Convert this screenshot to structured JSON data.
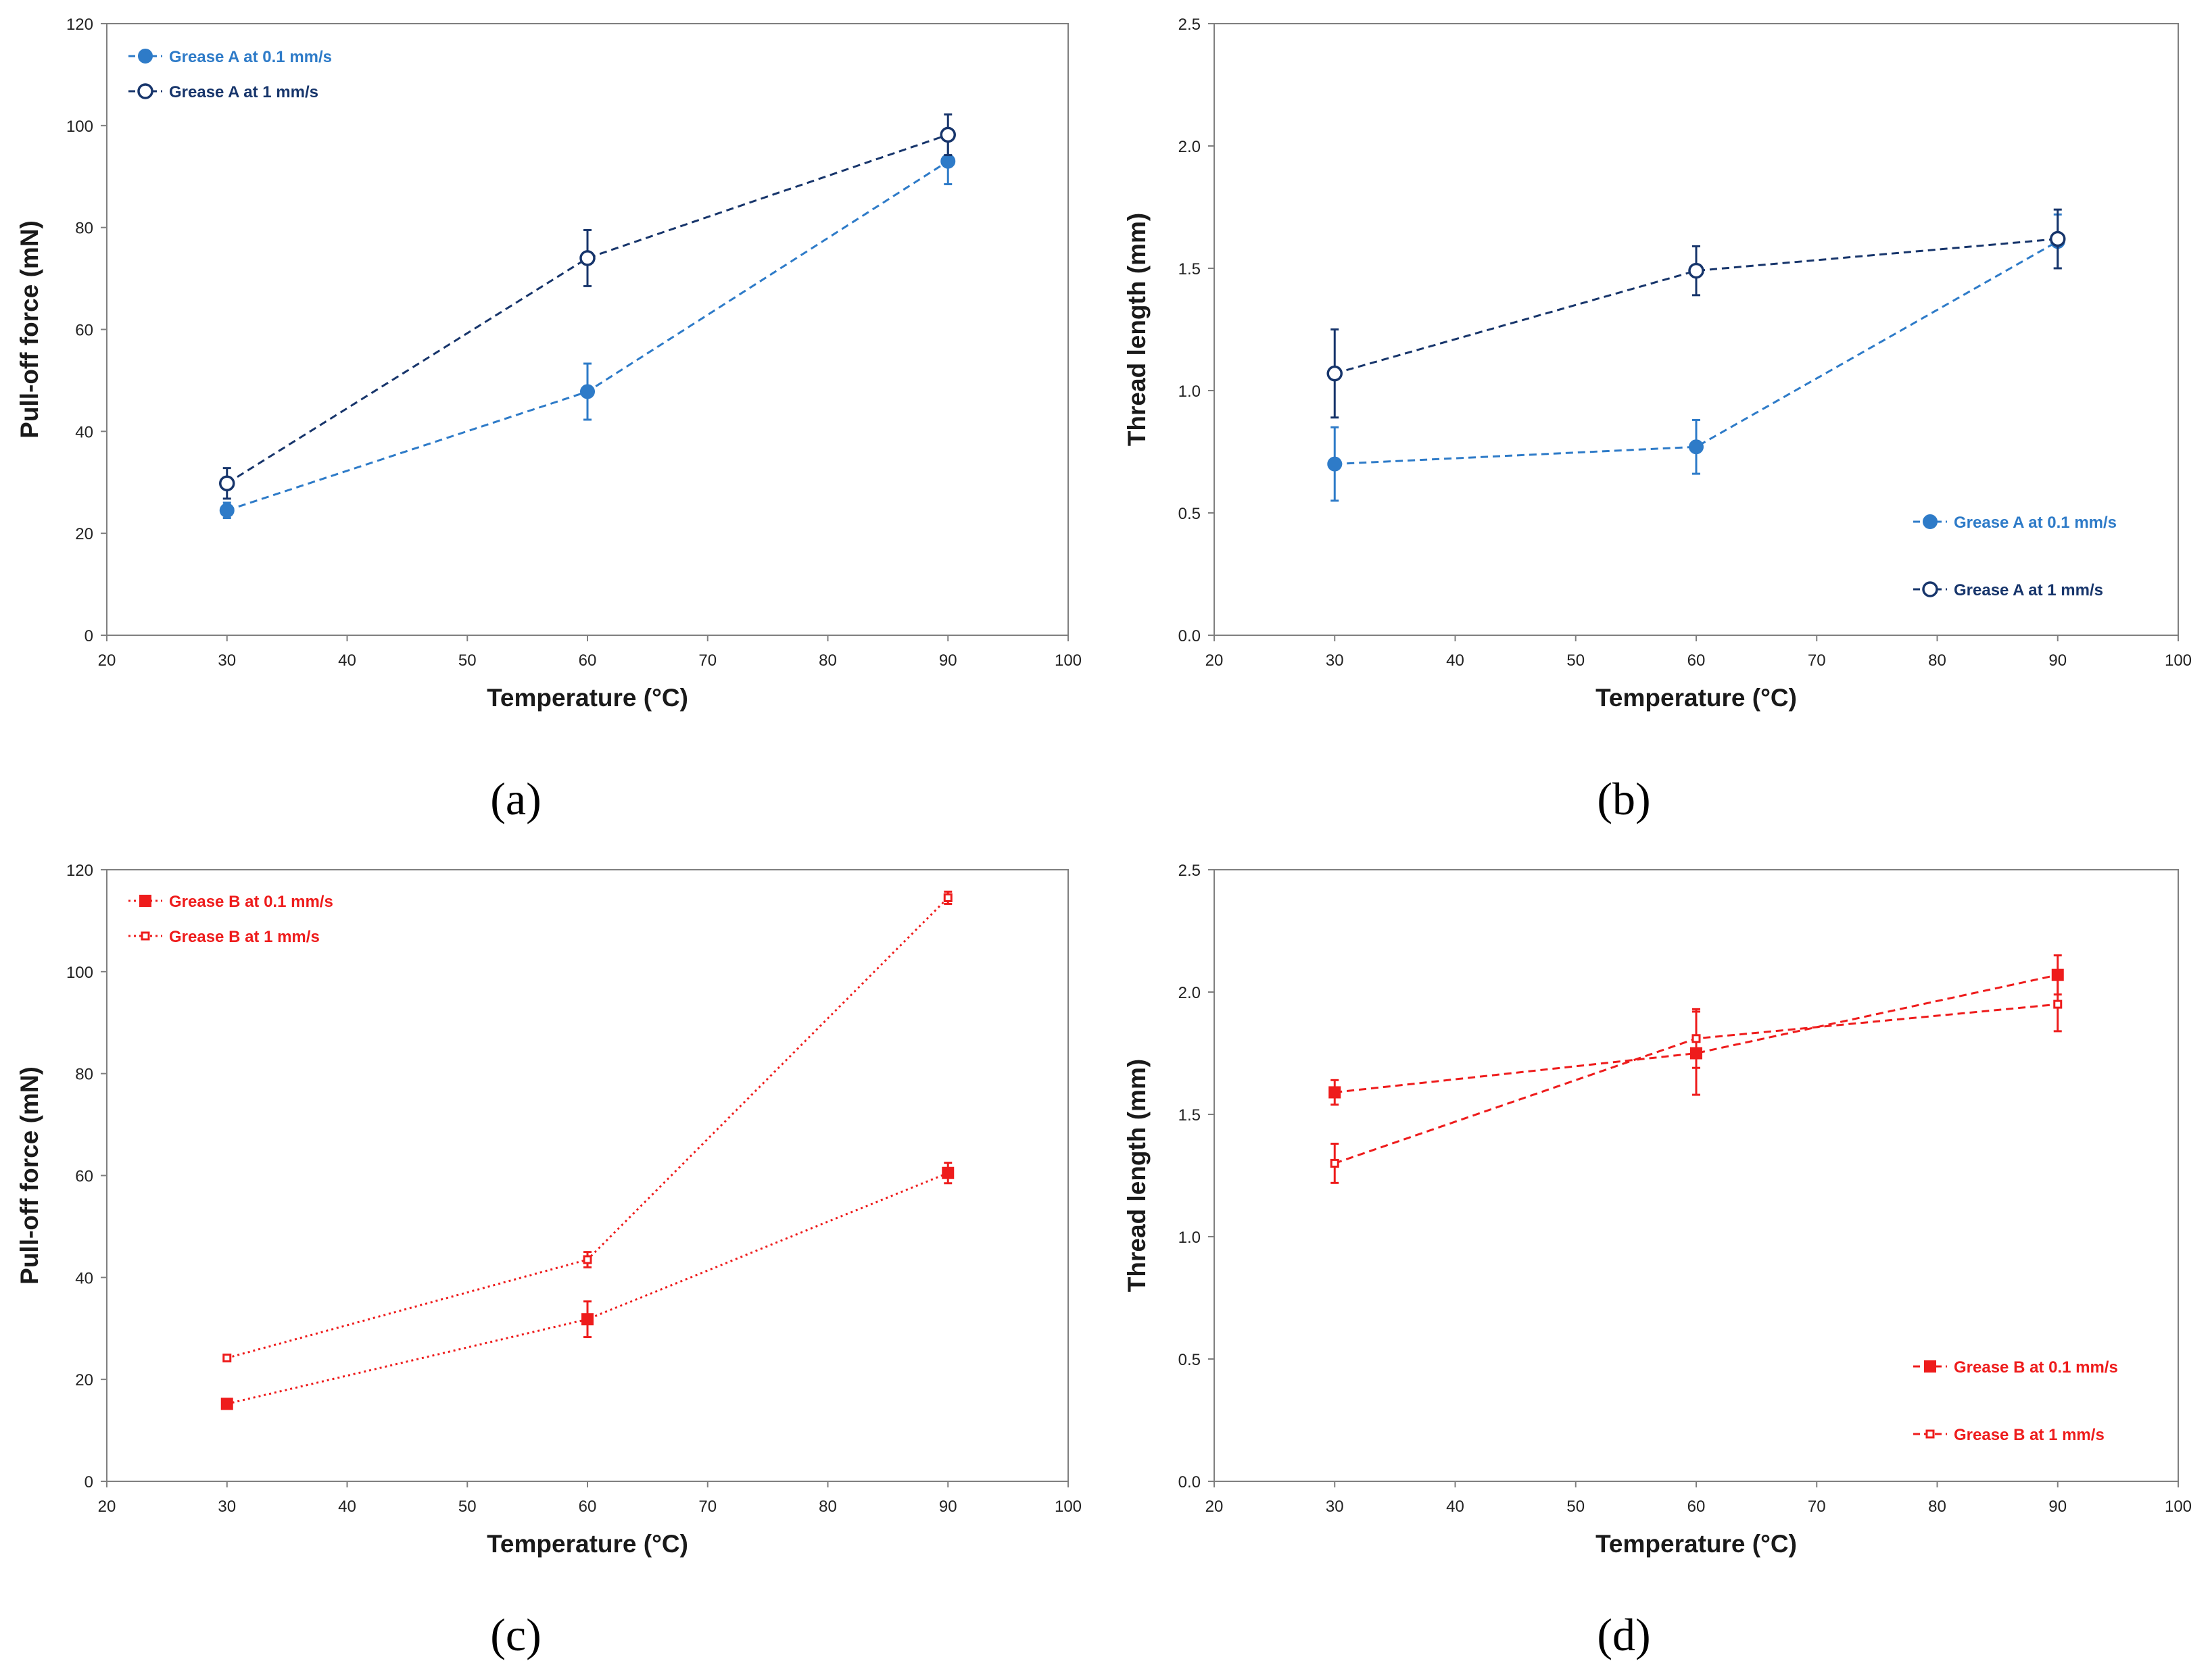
{
  "colors": {
    "grease_a_slow": "#2E7BC8",
    "grease_a_fast": "#17356B",
    "grease_b": "#EE1C1C",
    "axis": "#7f7f7f"
  },
  "chart_data": [
    {
      "type": "scatter",
      "caption": "(a)",
      "xlabel": "Temperature (°C)",
      "ylabel": "Pull-off force (mN)",
      "xlim": [
        20,
        100
      ],
      "ylim": [
        0,
        120
      ],
      "xticks": [
        "20",
        "30",
        "40",
        "50",
        "60",
        "70",
        "80",
        "90",
        "100"
      ],
      "yticks": [
        "0",
        "20",
        "40",
        "60",
        "80",
        "100",
        "120"
      ],
      "grid": false,
      "legend_position": "top-left",
      "series": [
        {
          "name": "Grease A at 0.1 mm/s",
          "color": "#2E7BC8",
          "marker": "filled-circle",
          "line": "dashed",
          "x": [
            30,
            60,
            90
          ],
          "y": [
            24.5,
            47.8,
            93
          ],
          "err": [
            1.5,
            5.5,
            4.5
          ]
        },
        {
          "name": "Grease A at 1 mm/s",
          "color": "#17356B",
          "marker": "open-circle",
          "line": "dashed",
          "x": [
            30,
            60,
            90
          ],
          "y": [
            29.8,
            74,
            98.2
          ],
          "err": [
            3,
            5.5,
            4
          ]
        }
      ]
    },
    {
      "type": "scatter",
      "caption": "(b)",
      "xlabel": "Temperature (°C)",
      "ylabel": "Thread length (mm)",
      "xlim": [
        20,
        100
      ],
      "ylim": [
        0,
        2.5
      ],
      "xticks": [
        "20",
        "30",
        "40",
        "50",
        "60",
        "70",
        "80",
        "90",
        "100"
      ],
      "yticks": [
        "0.0",
        "0.5",
        "1.0",
        "1.5",
        "2.0",
        "2.5"
      ],
      "grid": false,
      "legend_position": "bottom-right",
      "series": [
        {
          "name": "Grease A at 0.1 mm/s",
          "color": "#2E7BC8",
          "marker": "filled-circle",
          "line": "dashed",
          "x": [
            30,
            60,
            90
          ],
          "y": [
            0.7,
            0.77,
            1.61
          ],
          "err": [
            0.15,
            0.11,
            0.11
          ]
        },
        {
          "name": "Grease A at 1 mm/s",
          "color": "#17356B",
          "marker": "open-circle",
          "line": "dashed",
          "x": [
            30,
            60,
            90
          ],
          "y": [
            1.07,
            1.49,
            1.62
          ],
          "err": [
            0.18,
            0.1,
            0.12
          ]
        }
      ]
    },
    {
      "type": "scatter",
      "caption": "(c)",
      "xlabel": "Temperature (°C)",
      "ylabel": "Pull-off force (mN)",
      "xlim": [
        20,
        100
      ],
      "ylim": [
        0,
        120
      ],
      "xticks": [
        "20",
        "30",
        "40",
        "50",
        "60",
        "70",
        "80",
        "90",
        "100"
      ],
      "yticks": [
        "0",
        "20",
        "40",
        "60",
        "80",
        "100",
        "120"
      ],
      "grid": false,
      "legend_position": "top-left",
      "series": [
        {
          "name": "Grease B at 0.1 mm/s",
          "color": "#EE1C1C",
          "marker": "filled-square",
          "line": "dotted",
          "x": [
            30,
            60,
            90
          ],
          "y": [
            15.2,
            31.8,
            60.5
          ],
          "err": [
            0.8,
            3.5,
            2
          ]
        },
        {
          "name": "Grease B at 1 mm/s",
          "color": "#EE1C1C",
          "marker": "small-square",
          "line": "dotted",
          "x": [
            30,
            60,
            90
          ],
          "y": [
            24.2,
            43.5,
            114.5
          ],
          "err": [
            0.6,
            1.5,
            1.2
          ]
        }
      ]
    },
    {
      "type": "scatter",
      "caption": "(d)",
      "xlabel": "Temperature (°C)",
      "ylabel": "Thread length (mm)",
      "xlim": [
        20,
        100
      ],
      "ylim": [
        0,
        2.5
      ],
      "xticks": [
        "20",
        "30",
        "40",
        "50",
        "60",
        "70",
        "80",
        "90",
        "100"
      ],
      "yticks": [
        "0.0",
        "0.5",
        "1.0",
        "1.5",
        "2.0",
        "2.5"
      ],
      "grid": false,
      "legend_position": "bottom-right",
      "series": [
        {
          "name": "Grease B at 0.1 mm/s",
          "color": "#EE1C1C",
          "marker": "filled-square",
          "line": "dashed",
          "x": [
            30,
            60,
            90
          ],
          "y": [
            1.59,
            1.75,
            2.07
          ],
          "err": [
            0.05,
            0.17,
            0.08
          ]
        },
        {
          "name": "Grease B at 1 mm/s",
          "color": "#EE1C1C",
          "marker": "small-square",
          "line": "dashed",
          "x": [
            30,
            60,
            90
          ],
          "y": [
            1.3,
            1.81,
            1.95
          ],
          "err": [
            0.08,
            0.12,
            0.11
          ]
        }
      ]
    }
  ]
}
